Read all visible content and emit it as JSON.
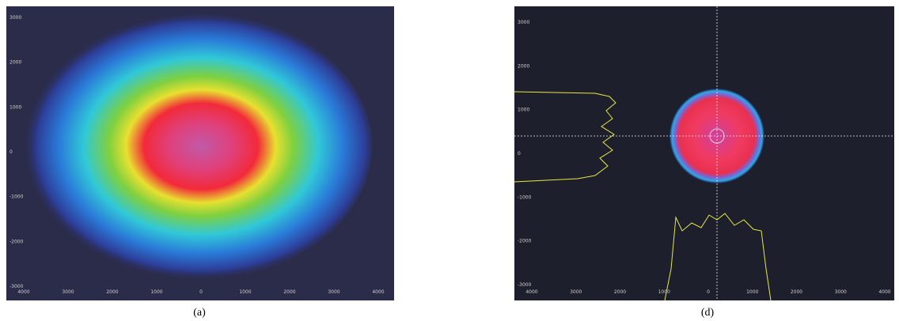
{
  "panels": [
    {
      "caption": "(a)",
      "y_labels": [
        "3000",
        "2000",
        "1000",
        "0",
        "-1000",
        "-2000",
        "-3000"
      ],
      "x_labels": [
        "4000",
        "3000",
        "2000",
        "1000",
        "0",
        "1000",
        "2000",
        "3000",
        "4000"
      ]
    },
    {
      "caption": "(d)",
      "y_labels": [
        "3000",
        "2000",
        "1000",
        "0",
        "-1000",
        "-2000",
        "-3000"
      ],
      "x_labels": [
        "4000",
        "3000",
        "2000",
        "1000",
        "0",
        "1000",
        "2000",
        "3000",
        "4000"
      ]
    }
  ]
}
